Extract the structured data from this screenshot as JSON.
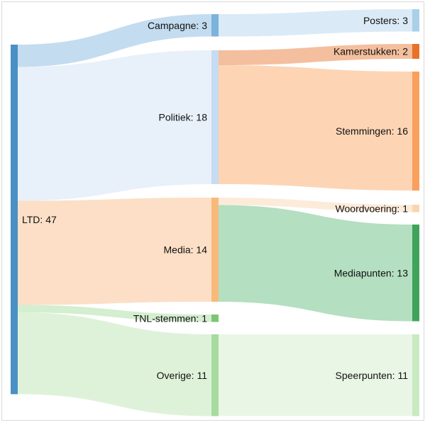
{
  "chart_data": {
    "type": "sankey",
    "nodes": [
      {
        "id": "ltd",
        "name": "LTD",
        "value": 47,
        "label": "LTD: 47",
        "color": "#4a90c4"
      },
      {
        "id": "campagne",
        "name": "Campagne",
        "value": 3,
        "label": "Campagne: 3",
        "color": "#7bb3dc"
      },
      {
        "id": "politiek",
        "name": "Politiek",
        "value": 18,
        "label": "Politiek: 18",
        "color": "#c6dcf0"
      },
      {
        "id": "media",
        "name": "Media",
        "value": 14,
        "label": "Media: 14",
        "color": "#f9b97b"
      },
      {
        "id": "tnl",
        "name": "TNL-stemmen",
        "value": 1,
        "label": "TNL-stemmen: 1",
        "color": "#7cc576"
      },
      {
        "id": "overige",
        "name": "Overige",
        "value": 11,
        "label": "Overige: 11",
        "color": "#a8dba0"
      },
      {
        "id": "posters",
        "name": "Posters",
        "value": 3,
        "label": "Posters: 3",
        "color": "#a9cfe9"
      },
      {
        "id": "kamerstukken",
        "name": "Kamerstukken",
        "value": 2,
        "label": "Kamerstukken: 2",
        "color": "#e8702a"
      },
      {
        "id": "stemmingen",
        "name": "Stemmingen",
        "value": 16,
        "label": "Stemmingen: 16",
        "color": "#f8a05c"
      },
      {
        "id": "woordvoering",
        "name": "Woordvoering",
        "value": 1,
        "label": "Woordvoering: 1",
        "color": "#fbd5ad"
      },
      {
        "id": "mediapunten",
        "name": "Mediapunten",
        "value": 13,
        "label": "Mediapunten: 13",
        "color": "#3fa45a"
      },
      {
        "id": "speerpunten",
        "name": "Speerpunten",
        "value": 11,
        "label": "Speerpunten: 11",
        "color": "#c9eac0"
      }
    ],
    "links": [
      {
        "source": "ltd",
        "target": "campagne",
        "value": 3,
        "color": "#bcd8ee"
      },
      {
        "source": "ltd",
        "target": "politiek",
        "value": 18,
        "color": "#e6eef9"
      },
      {
        "source": "ltd",
        "target": "media",
        "value": 14,
        "color": "#fcdcc0"
      },
      {
        "source": "ltd",
        "target": "tnl",
        "value": 1,
        "color": "#cfeccb"
      },
      {
        "source": "ltd",
        "target": "overige",
        "value": 11,
        "color": "#daf1d5"
      },
      {
        "source": "campagne",
        "target": "posters",
        "value": 3,
        "color": "#d6e8f5"
      },
      {
        "source": "politiek",
        "target": "kamerstukken",
        "value": 2,
        "color": "#f3b894"
      },
      {
        "source": "politiek",
        "target": "stemmingen",
        "value": 16,
        "color": "#fdd0ad"
      },
      {
        "source": "media",
        "target": "woordvoering",
        "value": 1,
        "color": "#fde9d6"
      },
      {
        "source": "media",
        "target": "mediapunten",
        "value": 13,
        "color": "#acdbb9"
      },
      {
        "source": "overige",
        "target": "speerpunten",
        "value": 11,
        "color": "#e7f5e2"
      }
    ]
  }
}
